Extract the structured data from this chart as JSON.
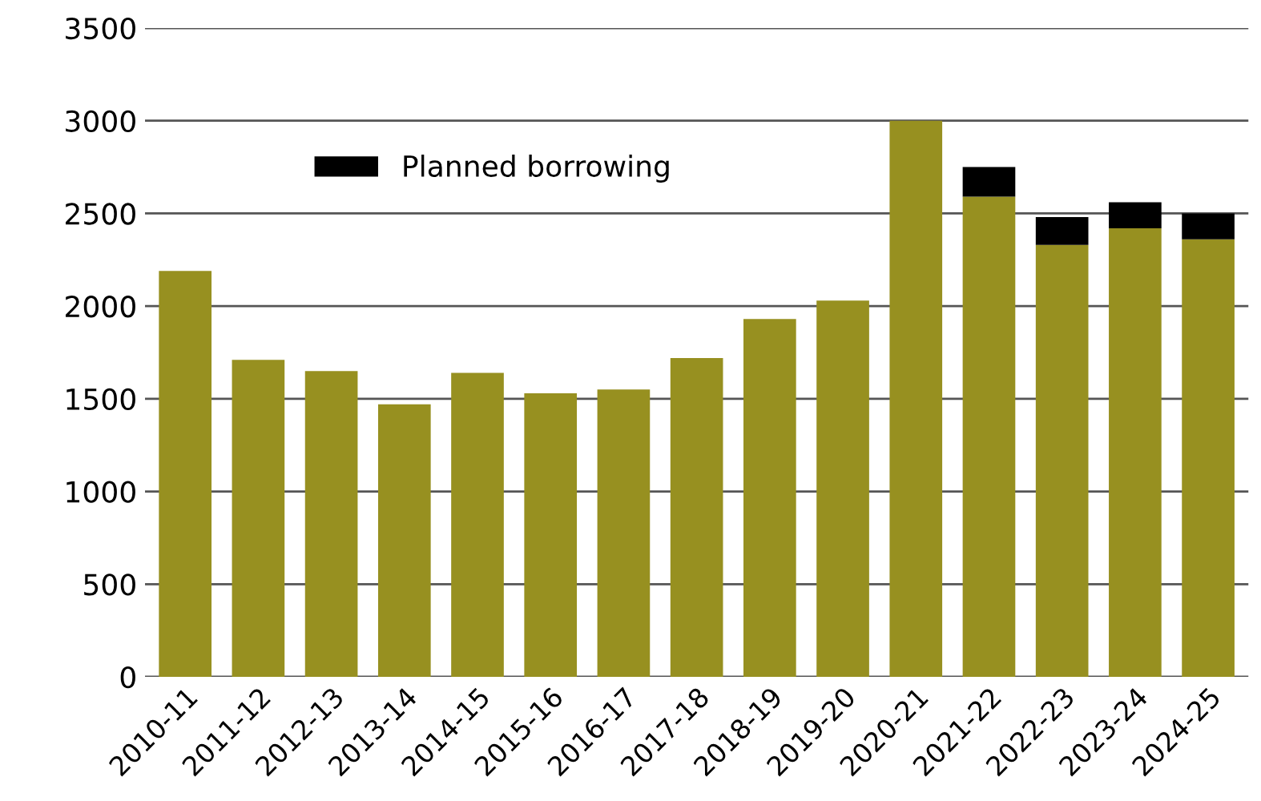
{
  "chart_data": {
    "type": "bar",
    "stacked": true,
    "categories": [
      "2010-11",
      "2011-12",
      "2012-13",
      "2013-14",
      "2014-15",
      "2015-16",
      "2016-17",
      "2017-18",
      "2018-19",
      "2019-20",
      "2020-21",
      "2021-22",
      "2022-23",
      "2023-24",
      "2024-25"
    ],
    "series": [
      {
        "color": "#979020",
        "values": [
          2190,
          1710,
          1650,
          1470,
          1640,
          1530,
          1550,
          1720,
          1930,
          2030,
          3000,
          2590,
          2330,
          2420,
          2360
        ]
      },
      {
        "name": "Planned borrowing",
        "color": "#000000",
        "values": [
          null,
          null,
          null,
          null,
          null,
          null,
          null,
          null,
          null,
          null,
          null,
          160,
          150,
          140,
          140
        ]
      }
    ],
    "ylim": [
      0,
      3500
    ],
    "yticks": [
      0,
      500,
      1000,
      1500,
      2000,
      2500,
      3000,
      3500
    ],
    "grid": "y",
    "legend": "top left"
  }
}
